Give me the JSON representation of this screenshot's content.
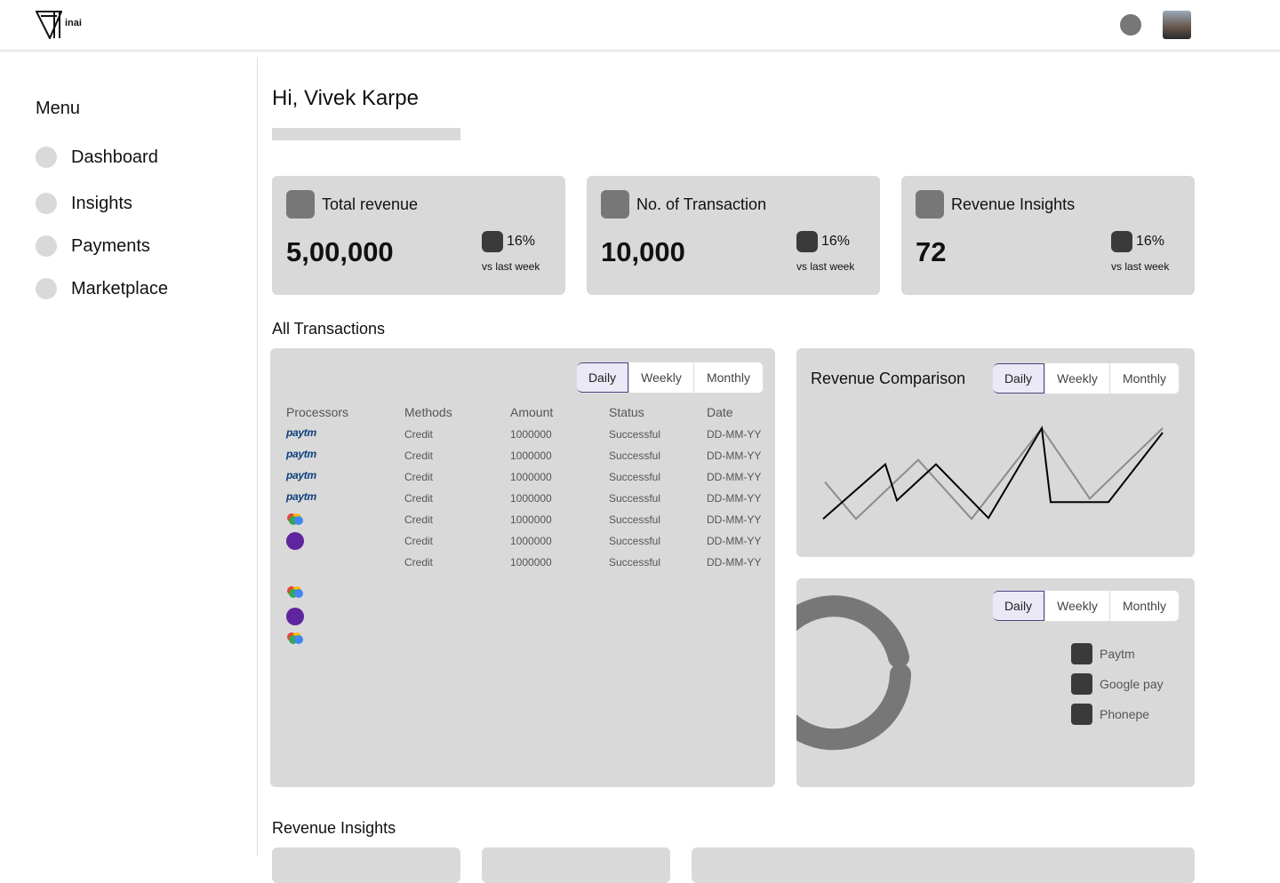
{
  "header": {
    "logo_text": "inai"
  },
  "menu": {
    "title": "Menu",
    "items": [
      "Dashboard",
      "Insights",
      "Payments",
      "Marketplace"
    ]
  },
  "greeting": "Hi, Vivek Karpe",
  "stats": [
    {
      "title": "Total revenue",
      "value": "5,00,000",
      "change": "16%",
      "change_note": "vs last week"
    },
    {
      "title": "No. of Transaction",
      "value": "10,000",
      "change": "16%",
      "change_note": "vs last week"
    },
    {
      "title": "Revenue Insights",
      "value": "72",
      "change": "16%",
      "change_note": "vs last week"
    }
  ],
  "transactions": {
    "title": "All Transactions",
    "tabs": [
      "Daily",
      "Weekly",
      "Monthly"
    ],
    "columns": [
      "Processors",
      "Methods",
      "Amount",
      "Status",
      "Date"
    ],
    "paytm_logo": "paytm",
    "rows": [
      [
        "Credit",
        "1000000",
        "Successful",
        "DD-MM-YY"
      ],
      [
        "Credit",
        "1000000",
        "Successful",
        "DD-MM-YY"
      ],
      [
        "Credit",
        "1000000",
        "Successful",
        "DD-MM-YY"
      ],
      [
        "Credit",
        "1000000",
        "Successful",
        "DD-MM-YY"
      ],
      [
        "Credit",
        "1000000",
        "Successful",
        "DD-MM-YY"
      ],
      [
        "Credit",
        "1000000",
        "Successful",
        "DD-MM-YY"
      ],
      [
        "Credit",
        "1000000",
        "Successful",
        "DD-MM-YY"
      ]
    ]
  },
  "revenue_comparison": {
    "title": "Revenue Comparison",
    "tabs": [
      "Daily",
      "Weekly",
      "Monthly"
    ],
    "chart_data": {
      "type": "line",
      "xlim": [
        0,
        384
      ],
      "ylim": [
        0,
        120
      ],
      "series": [
        {
          "color": "#000000",
          "x": [
            0,
            70,
            83,
            127,
            186,
            246,
            256,
            321,
            382
          ],
          "values": [
            16,
            78,
            37,
            78,
            17,
            119,
            35,
            35,
            114
          ]
        },
        {
          "color": "#8c8c8c",
          "x": [
            2,
            37,
            107,
            167,
            246,
            300,
            382
          ],
          "values": [
            58,
            16,
            83,
            16,
            119,
            39,
            119
          ]
        }
      ]
    }
  },
  "processor_share": {
    "tabs": [
      "Daily",
      "Weekly",
      "Monthly"
    ],
    "legend": [
      "Paytm",
      "Google pay",
      "Phonepe"
    ]
  },
  "revenue_insights": {
    "title": "Revenue Insights"
  }
}
